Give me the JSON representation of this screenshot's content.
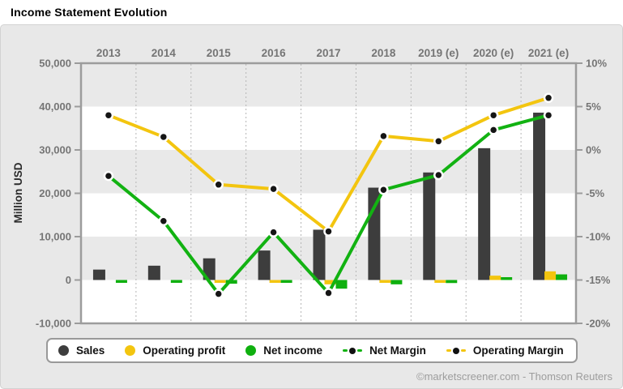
{
  "header": {
    "title": "Income Statement Evolution"
  },
  "footer": {
    "credit": "©marketscreener.com - Thomson Reuters"
  },
  "chart_data": {
    "type": "bar+line",
    "title": "Income Statement Evolution",
    "categories": [
      "2013",
      "2014",
      "2015",
      "2016",
      "2017",
      "2018",
      "2019 (e)",
      "2020 (e)",
      "2021 (e)"
    ],
    "series": [
      {
        "name": "Sales",
        "type": "bar",
        "axis": "left",
        "color": "#3d3d3d",
        "values": [
          2400,
          3300,
          5000,
          6800,
          11600,
          21300,
          24800,
          30400,
          38600
        ]
      },
      {
        "name": "Operating profit",
        "type": "bar",
        "axis": "left",
        "color": "#f3c50f",
        "values": [
          0,
          0,
          -250,
          -300,
          -1000,
          -200,
          -250,
          1000,
          2000
        ]
      },
      {
        "name": "Net income",
        "type": "bar",
        "axis": "left",
        "color": "#0fb00f",
        "values": [
          -250,
          -350,
          -850,
          -650,
          -2000,
          -1000,
          -700,
          500,
          1300
        ]
      },
      {
        "name": "Net Margin",
        "type": "line",
        "axis": "right",
        "color": "#12b212",
        "values": [
          -3.0,
          -8.2,
          -16.6,
          -9.5,
          -16.5,
          -4.6,
          -2.9,
          2.3,
          4.0
        ]
      },
      {
        "name": "Operating Margin",
        "type": "line",
        "axis": "right",
        "color": "#f3c50f",
        "values": [
          4.0,
          1.5,
          -4.0,
          -4.5,
          -9.4,
          1.6,
          1.0,
          4.0,
          6.0
        ]
      }
    ],
    "axes": {
      "left": {
        "label": "Million USD",
        "min": -10000,
        "max": 50000,
        "tick_values": [
          50000,
          40000,
          30000,
          20000,
          10000,
          0,
          -10000
        ],
        "tick_labels": [
          "50,000",
          "40,000",
          "30,000",
          "20,000",
          "10,000",
          "0",
          "-10,000"
        ]
      },
      "right": {
        "label": "",
        "min": -20,
        "max": 10,
        "tick_values": [
          10,
          5,
          0,
          -5,
          -10,
          -15,
          -20
        ],
        "tick_labels": [
          "10%",
          "5%",
          "0%",
          "-5%",
          "-10%",
          "-15%",
          "-20%"
        ]
      }
    },
    "gray_bands_right_axis": [
      [
        10,
        5
      ],
      [
        0,
        -5
      ],
      [
        -10,
        -15
      ]
    ],
    "grid": "vertical-dotted-between-categories",
    "legend_position": "bottom",
    "colors": {
      "band_gray": "#e9e9e9",
      "plot_white": "#ffffff",
      "axis_line": "#9c9c9c",
      "grid_dot": "#b5b5b5",
      "tick_text": "#757575",
      "dot_fill": "#151515"
    }
  }
}
